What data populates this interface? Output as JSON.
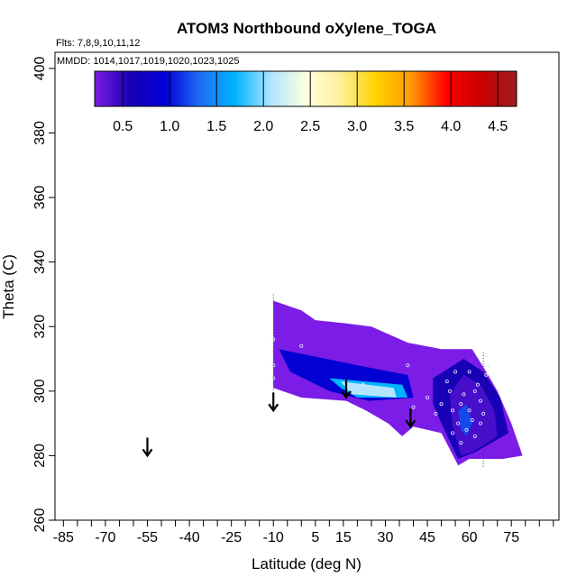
{
  "chart_data": {
    "type": "heatmap",
    "title": "ATOM3 Northbound oXylene_TOGA",
    "flights_note": "Flts: 7,8,9,10,11,12",
    "dates_note": "MMDD: 1014,1017,1019,1020,1023,1025",
    "xlabel": "Latitude (deg N)",
    "ylabel": "Theta (C)",
    "xlim": [
      -88,
      92
    ],
    "ylim": [
      260,
      405
    ],
    "xticks": [
      -85,
      -70,
      -55,
      -40,
      -25,
      -10,
      5,
      15,
      30,
      45,
      60,
      75
    ],
    "yticks": [
      260,
      280,
      300,
      320,
      340,
      360,
      380,
      400
    ],
    "colorbar": {
      "range": [
        0.2,
        4.7
      ],
      "ticks": [
        0.5,
        1.0,
        1.5,
        2.0,
        2.5,
        3.0,
        3.5,
        4.0,
        4.5
      ],
      "tick_labels": [
        "0.5",
        "1.0",
        "1.5",
        "2.0",
        "2.5",
        "3.0",
        "3.5",
        "4.0",
        "4.5"
      ],
      "stops": [
        "#7b1de6",
        "#1a00b4",
        "#0000d8",
        "#1e6ef6",
        "#00b4ff",
        "#aee4ff",
        "#ffffe0",
        "#ffef9a",
        "#ffd200",
        "#ff9a00",
        "#ff0000",
        "#c80000",
        "#a01e1e"
      ]
    },
    "arrows": [
      {
        "lat": -55,
        "theta": 280
      },
      {
        "lat": -10,
        "theta": 294
      },
      {
        "lat": 16,
        "theta": 298
      },
      {
        "lat": 39,
        "theta": 289
      }
    ],
    "field": {
      "base_color": "#7b1de6",
      "outline": [
        [
          -10,
          328
        ],
        [
          0,
          325
        ],
        [
          5,
          322
        ],
        [
          16,
          321
        ],
        [
          25,
          320
        ],
        [
          38,
          315
        ],
        [
          50,
          313
        ],
        [
          61,
          313
        ],
        [
          66,
          306
        ],
        [
          70,
          300
        ],
        [
          75,
          290
        ],
        [
          79,
          280
        ],
        [
          72,
          279
        ],
        [
          60,
          279
        ],
        [
          56,
          277
        ],
        [
          53,
          282
        ],
        [
          50,
          287
        ],
        [
          45,
          288
        ],
        [
          40,
          289
        ],
        [
          36,
          286
        ],
        [
          31,
          290
        ],
        [
          23,
          294
        ],
        [
          16,
          297
        ],
        [
          0,
          298
        ],
        [
          -10,
          301
        ]
      ],
      "patches": [
        {
          "value": 0.9,
          "poly": [
            [
              -8,
              313
            ],
            [
              20,
              308
            ],
            [
              38,
              305
            ],
            [
              40,
              298
            ],
            [
              24,
              297
            ],
            [
              10,
              300
            ],
            [
              -4,
              306
            ]
          ]
        },
        {
          "value": 1.7,
          "poly": [
            [
              10,
              304
            ],
            [
              36,
              302
            ],
            [
              38,
              298
            ],
            [
              20,
              298
            ],
            [
              14,
              301
            ]
          ]
        },
        {
          "value": 2.1,
          "poly": [
            [
              14,
              303
            ],
            [
              33,
              301
            ],
            [
              34,
              298
            ],
            [
              18,
              299
            ]
          ]
        },
        {
          "value": 0.6,
          "poly": [
            [
              47,
              304
            ],
            [
              58,
              310
            ],
            [
              65,
              306
            ],
            [
              71,
              298
            ],
            [
              74,
              287
            ],
            [
              62,
              281
            ],
            [
              56,
              279
            ],
            [
              50,
              290
            ],
            [
              47,
              296
            ]
          ]
        },
        {
          "value": 0.4,
          "poly": [
            [
              53,
              299
            ],
            [
              58,
              305
            ],
            [
              64,
              302
            ],
            [
              69,
              294
            ],
            [
              70,
              286
            ],
            [
              61,
              281
            ],
            [
              57,
              280
            ],
            [
              54,
              289
            ]
          ]
        },
        {
          "value": 1.2,
          "poly": [
            [
              56,
              294
            ],
            [
              59,
              296
            ],
            [
              61,
              290
            ],
            [
              59,
              286
            ],
            [
              57,
              288
            ]
          ]
        }
      ]
    },
    "samples": [
      [
        -10,
        316
      ],
      [
        -10,
        308
      ],
      [
        -10,
        304
      ],
      [
        0,
        314
      ],
      [
        22,
        302
      ],
      [
        38,
        308
      ],
      [
        40,
        295
      ],
      [
        45,
        298
      ],
      [
        48,
        293
      ],
      [
        50,
        296
      ],
      [
        52,
        303
      ],
      [
        53,
        300
      ],
      [
        54,
        294
      ],
      [
        54,
        287
      ],
      [
        55,
        306
      ],
      [
        56,
        290
      ],
      [
        57,
        296
      ],
      [
        57,
        284
      ],
      [
        58,
        299
      ],
      [
        59,
        288
      ],
      [
        60,
        306
      ],
      [
        60,
        294
      ],
      [
        61,
        291
      ],
      [
        62,
        300
      ],
      [
        62,
        286
      ],
      [
        63,
        302
      ],
      [
        64,
        297
      ],
      [
        64,
        290
      ],
      [
        65,
        293
      ],
      [
        66,
        311
      ],
      [
        66,
        305
      ],
      [
        67,
        308
      ]
    ]
  }
}
